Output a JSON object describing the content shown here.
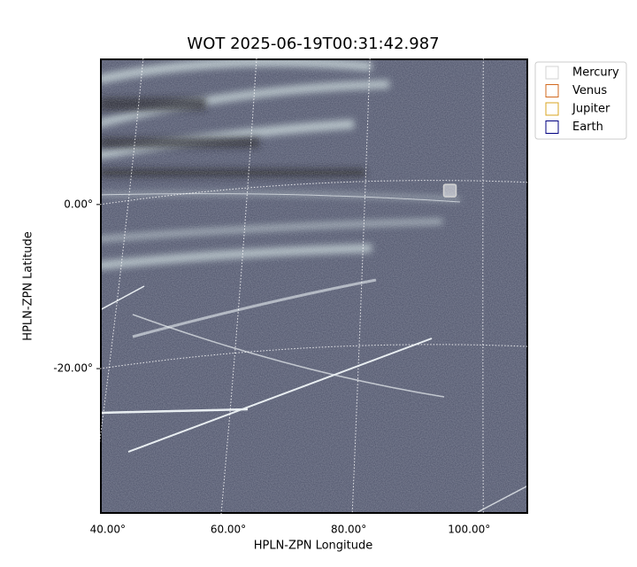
{
  "chart_data": {
    "type": "image",
    "title": "WOT 2025-06-19T00:31:42.987",
    "x_label": "HPLN-ZPN Longitude",
    "y_label": "HPLN-ZPN Latitude",
    "xlim": [
      38.7,
      109.8
    ],
    "ylim": [
      -37.7,
      17.8
    ],
    "xticks": [
      {
        "value": 40,
        "label": "40.00°"
      },
      {
        "value": 60,
        "label": "60.00°"
      },
      {
        "value": 80,
        "label": "80.00°"
      },
      {
        "value": 100,
        "label": "100.00°"
      }
    ],
    "yticks": [
      {
        "value": 0,
        "label": "0.00°"
      },
      {
        "value": -20,
        "label": "-20.00°"
      }
    ],
    "grid": true,
    "legend": "upper right",
    "series": [
      {
        "name": "Mercury",
        "color": "#d3d3d3",
        "x": [
          96.8
        ],
        "y": [
          1.7
        ]
      },
      {
        "name": "Venus",
        "color": "#d2691e",
        "x": [],
        "y": []
      },
      {
        "name": "Jupiter",
        "color": "#daa520",
        "x": [],
        "y": []
      },
      {
        "name": "Earth",
        "color": "#000080",
        "x": [],
        "y": []
      }
    ]
  }
}
